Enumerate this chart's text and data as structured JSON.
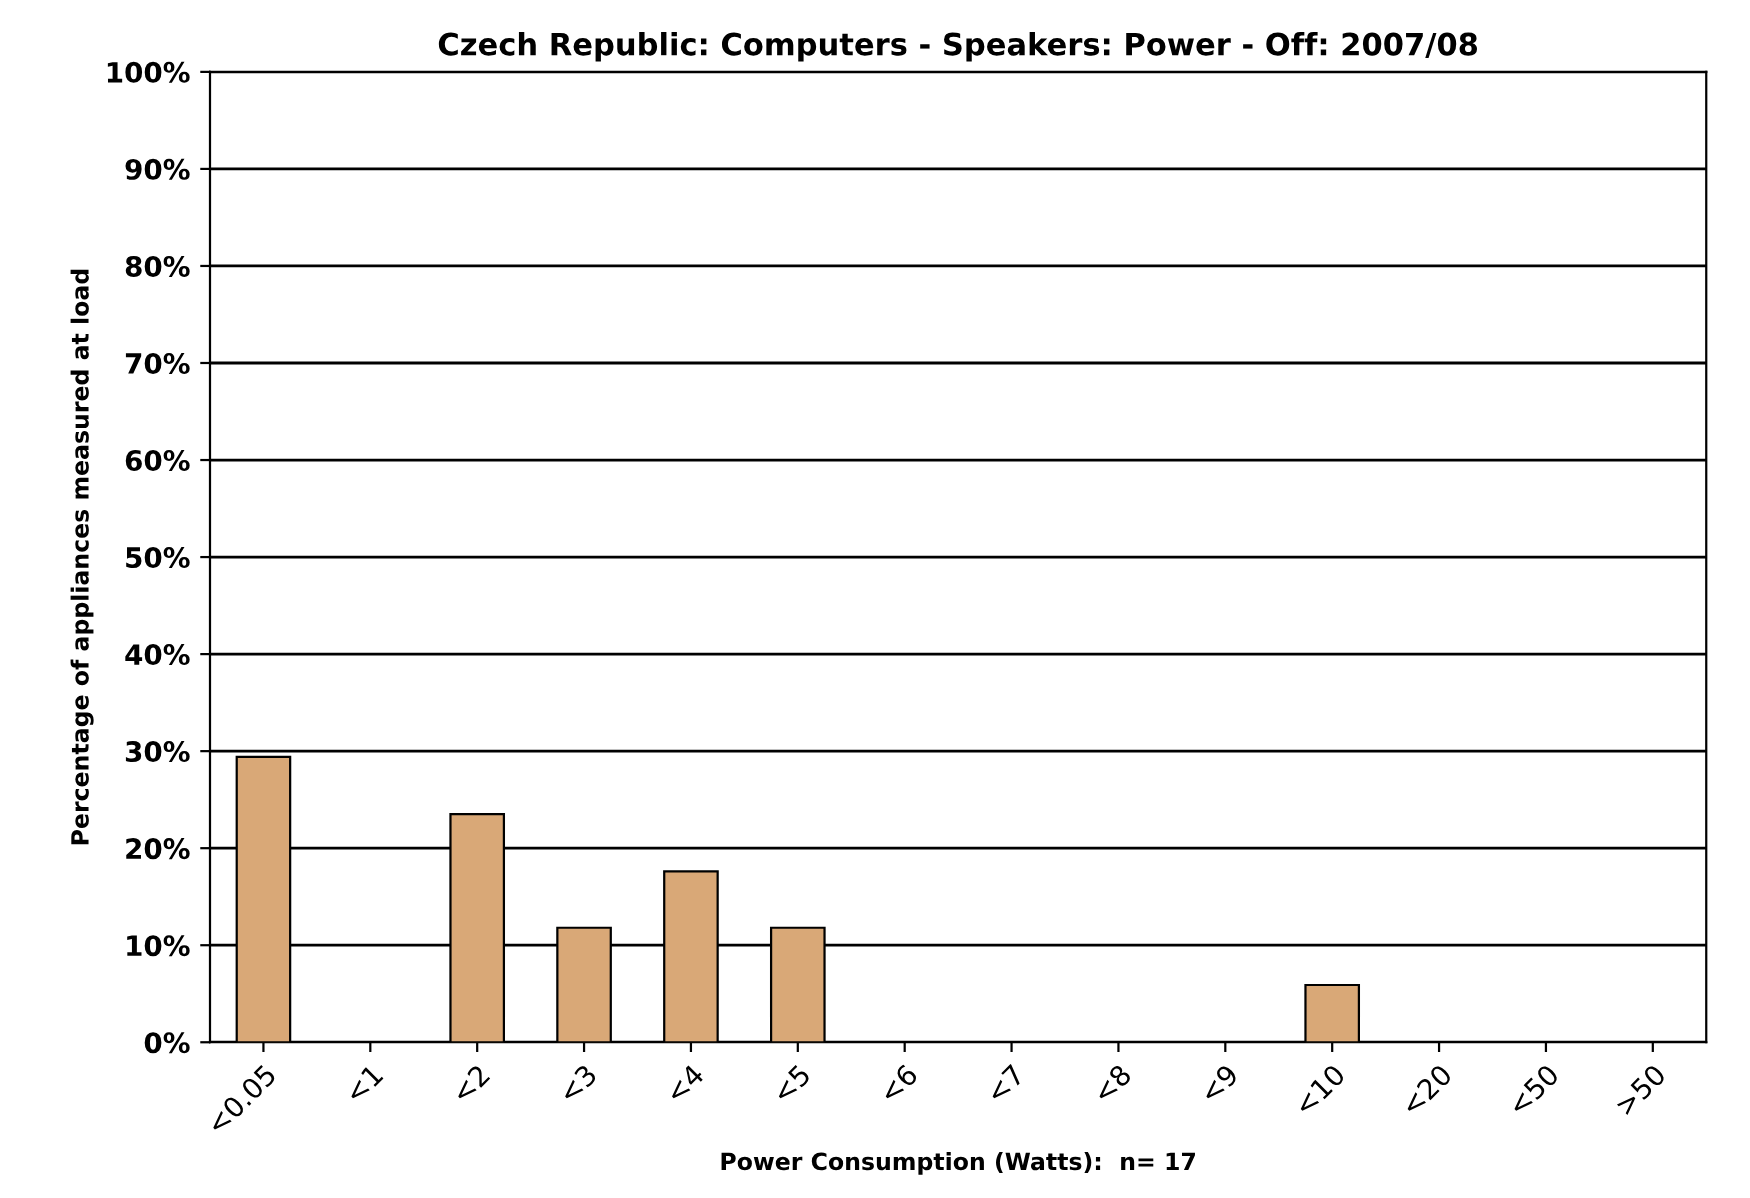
{
  "chart_data": {
    "type": "bar",
    "title": "Czech Republic: Computers - Speakers: Power - Off: 2007/08",
    "xlabel": "Power Consumption (Watts):  n= 17",
    "ylabel": "Percentage of appliances measured at load",
    "categories": [
      "<0.05",
      "<1",
      "<2",
      "<3",
      "<4",
      "<5",
      "<6",
      "<7",
      "<8",
      "<9",
      "<10",
      "<20",
      "<50",
      ">50"
    ],
    "values": [
      29.4,
      0,
      23.5,
      11.8,
      17.6,
      11.8,
      0,
      0,
      0,
      0,
      5.9,
      0,
      0,
      0
    ],
    "color": "#d9a877",
    "ylim": [
      0,
      100
    ],
    "yticks": [
      {
        "value": 0,
        "label": "0%"
      },
      {
        "value": 10,
        "label": "10%"
      },
      {
        "value": 20,
        "label": "20%"
      },
      {
        "value": 30,
        "label": "30%"
      },
      {
        "value": 40,
        "label": "40%"
      },
      {
        "value": 50,
        "label": "50%"
      },
      {
        "value": 60,
        "label": "60%"
      },
      {
        "value": 70,
        "label": "70%"
      },
      {
        "value": 80,
        "label": "80%"
      },
      {
        "value": 90,
        "label": "90%"
      },
      {
        "value": 100,
        "label": "100%"
      }
    ],
    "grid": "y"
  }
}
